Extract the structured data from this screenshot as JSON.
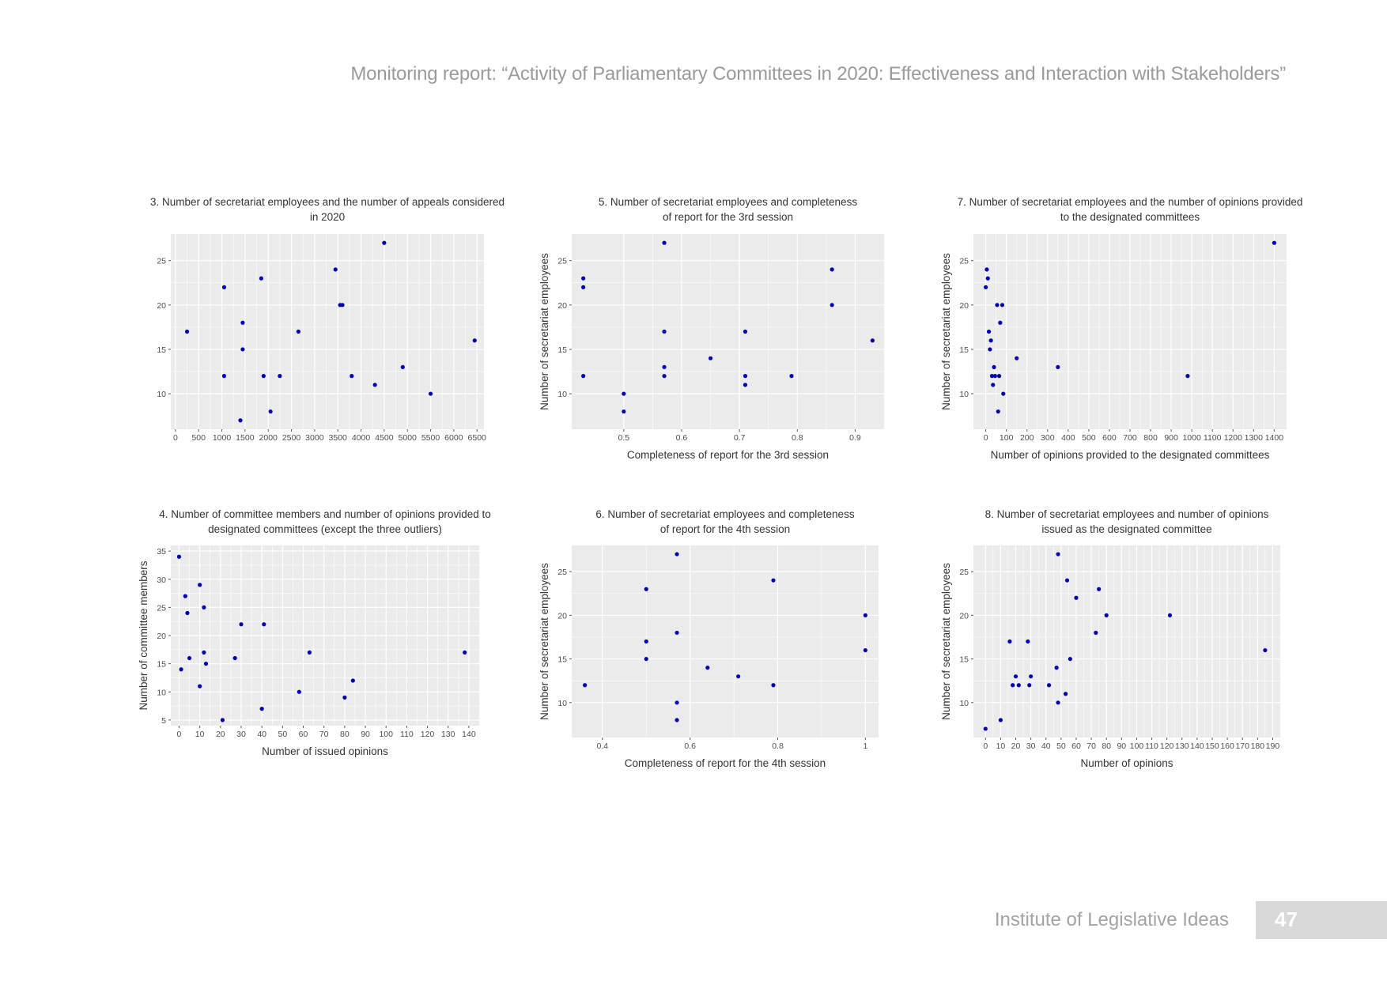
{
  "page": {
    "header": "Monitoring report: “Activity of Parliamentary Committees in 2020: Effectiveness and Interaction with Stakeholders”",
    "footer_org": "Institute of Legislative Ideas",
    "page_number": "47"
  },
  "theme": {
    "panel_bg": "#ebebeb",
    "grid": "#ffffff",
    "point": "#0000b3",
    "text": "#333333",
    "tick_text": "#4d4d4d"
  },
  "chart_data": [
    {
      "id": "c3",
      "type": "scatter",
      "title": [
        "3. Number of secretariat employees and the number of appeals considered",
        "in 2020"
      ],
      "xlabel": "",
      "ylabel": "",
      "xlim": [
        -100,
        6650
      ],
      "ylim": [
        6,
        28
      ],
      "xticks": [
        0,
        500,
        1000,
        1500,
        2000,
        2500,
        3000,
        3500,
        4000,
        4500,
        5000,
        5500,
        6000,
        6500
      ],
      "yticks": [
        10,
        15,
        20,
        25
      ],
      "x": [
        250,
        1050,
        1050,
        1400,
        1450,
        1450,
        1850,
        1900,
        2050,
        2250,
        2650,
        3450,
        3550,
        3600,
        3800,
        4300,
        4500,
        4900,
        5500,
        6450
      ],
      "y": [
        17,
        22,
        12,
        7,
        15,
        18,
        23,
        12,
        8,
        12,
        17,
        24,
        20,
        20,
        12,
        11,
        27,
        13,
        10,
        16
      ]
    },
    {
      "id": "c5",
      "type": "scatter",
      "title": [
        "5. Number of secretariat employees and completeness",
        "of report for the 3rd session"
      ],
      "xlabel": "Completeness of report for the 3rd session",
      "ylabel": "Number of secretariat employees",
      "xlim": [
        0.41,
        0.95
      ],
      "ylim": [
        6,
        28
      ],
      "xticks": [
        0.5,
        0.6,
        0.7,
        0.8,
        0.9
      ],
      "yticks": [
        10,
        15,
        20,
        25
      ],
      "x": [
        0.43,
        0.43,
        0.43,
        0.5,
        0.5,
        0.57,
        0.57,
        0.57,
        0.57,
        0.65,
        0.71,
        0.71,
        0.71,
        0.79,
        0.86,
        0.86,
        0.93
      ],
      "y": [
        23,
        22,
        12,
        10,
        8,
        27,
        17,
        13,
        12,
        14,
        17,
        12,
        11,
        12,
        24,
        20,
        16
      ]
    },
    {
      "id": "c7",
      "type": "scatter",
      "title": [
        "7. Number of secretariat employees and the number of opinions provided",
        "to the designated committees"
      ],
      "xlabel": "Number of opinions provided to the designated committees",
      "ylabel": "Number of secretariat employees",
      "xlim": [
        -60,
        1460
      ],
      "ylim": [
        6,
        28
      ],
      "xticks": [
        0,
        100,
        200,
        300,
        400,
        500,
        600,
        700,
        800,
        900,
        1000,
        1100,
        1200,
        1300,
        1400
      ],
      "yticks": [
        10,
        15,
        20,
        25
      ],
      "x": [
        0,
        5,
        10,
        15,
        20,
        25,
        30,
        35,
        40,
        45,
        55,
        60,
        65,
        70,
        80,
        85,
        150,
        350,
        980,
        1400
      ],
      "y": [
        22,
        24,
        23,
        17,
        15,
        16,
        12,
        11,
        13,
        12,
        20,
        8,
        12,
        18,
        20,
        10,
        14,
        13,
        12,
        27
      ]
    },
    {
      "id": "c4",
      "type": "scatter",
      "title": [
        "4. Number of committee members and number of opinions provided to",
        "designated committees (except the three outliers)"
      ],
      "xlabel": "Number of issued opinions",
      "ylabel": "Number of committee members",
      "xlim": [
        -4,
        145
      ],
      "ylim": [
        4,
        36
      ],
      "xticks": [
        0,
        10,
        20,
        30,
        40,
        50,
        60,
        70,
        80,
        90,
        100,
        110,
        120,
        130,
        140
      ],
      "yticks": [
        5,
        10,
        15,
        20,
        25,
        30,
        35
      ],
      "x": [
        0,
        1,
        3,
        4,
        5,
        10,
        10,
        12,
        12,
        13,
        21,
        27,
        30,
        40,
        41,
        58,
        63,
        80,
        84,
        138
      ],
      "y": [
        34,
        14,
        27,
        24,
        16,
        29,
        11,
        25,
        17,
        15,
        5,
        16,
        22,
        7,
        22,
        10,
        17,
        9,
        12,
        17
      ]
    },
    {
      "id": "c6",
      "type": "scatter",
      "title": [
        "6. Number of secretariat employees and completeness",
        "of report for the 4th session"
      ],
      "xlabel": "Completeness of report for the 4th session",
      "ylabel": "Number of secretariat employees",
      "xlim": [
        0.33,
        1.03
      ],
      "ylim": [
        6,
        28
      ],
      "xticks": [
        0.4,
        0.6,
        0.8,
        1.0
      ],
      "yticks": [
        10,
        15,
        20,
        25
      ],
      "x": [
        0.36,
        0.5,
        0.5,
        0.5,
        0.57,
        0.57,
        0.57,
        0.57,
        0.64,
        0.71,
        0.79,
        0.79,
        1.0,
        1.0
      ],
      "y": [
        12,
        23,
        17,
        15,
        27,
        18,
        10,
        8,
        14,
        13,
        24,
        12,
        20,
        16
      ]
    },
    {
      "id": "c8",
      "type": "scatter",
      "title": [
        "8. Number of secretariat employees and number of opinions",
        "issued as the designated committee"
      ],
      "xlabel": "Number of opinions",
      "ylabel": "Number of secretariat employees",
      "xlim": [
        -8,
        195
      ],
      "ylim": [
        6,
        28
      ],
      "xticks": [
        0,
        10,
        20,
        30,
        40,
        50,
        60,
        70,
        80,
        90,
        100,
        110,
        120,
        130,
        140,
        150,
        160,
        170,
        180,
        190
      ],
      "yticks": [
        10,
        15,
        20,
        25
      ],
      "x": [
        0,
        10,
        16,
        18,
        20,
        22,
        28,
        29,
        30,
        42,
        47,
        48,
        48,
        53,
        54,
        56,
        60,
        73,
        75,
        80,
        122,
        185
      ],
      "y": [
        7,
        8,
        17,
        12,
        13,
        12,
        17,
        12,
        13,
        12,
        14,
        10,
        27,
        11,
        24,
        15,
        22,
        18,
        23,
        20,
        20,
        16
      ]
    }
  ]
}
